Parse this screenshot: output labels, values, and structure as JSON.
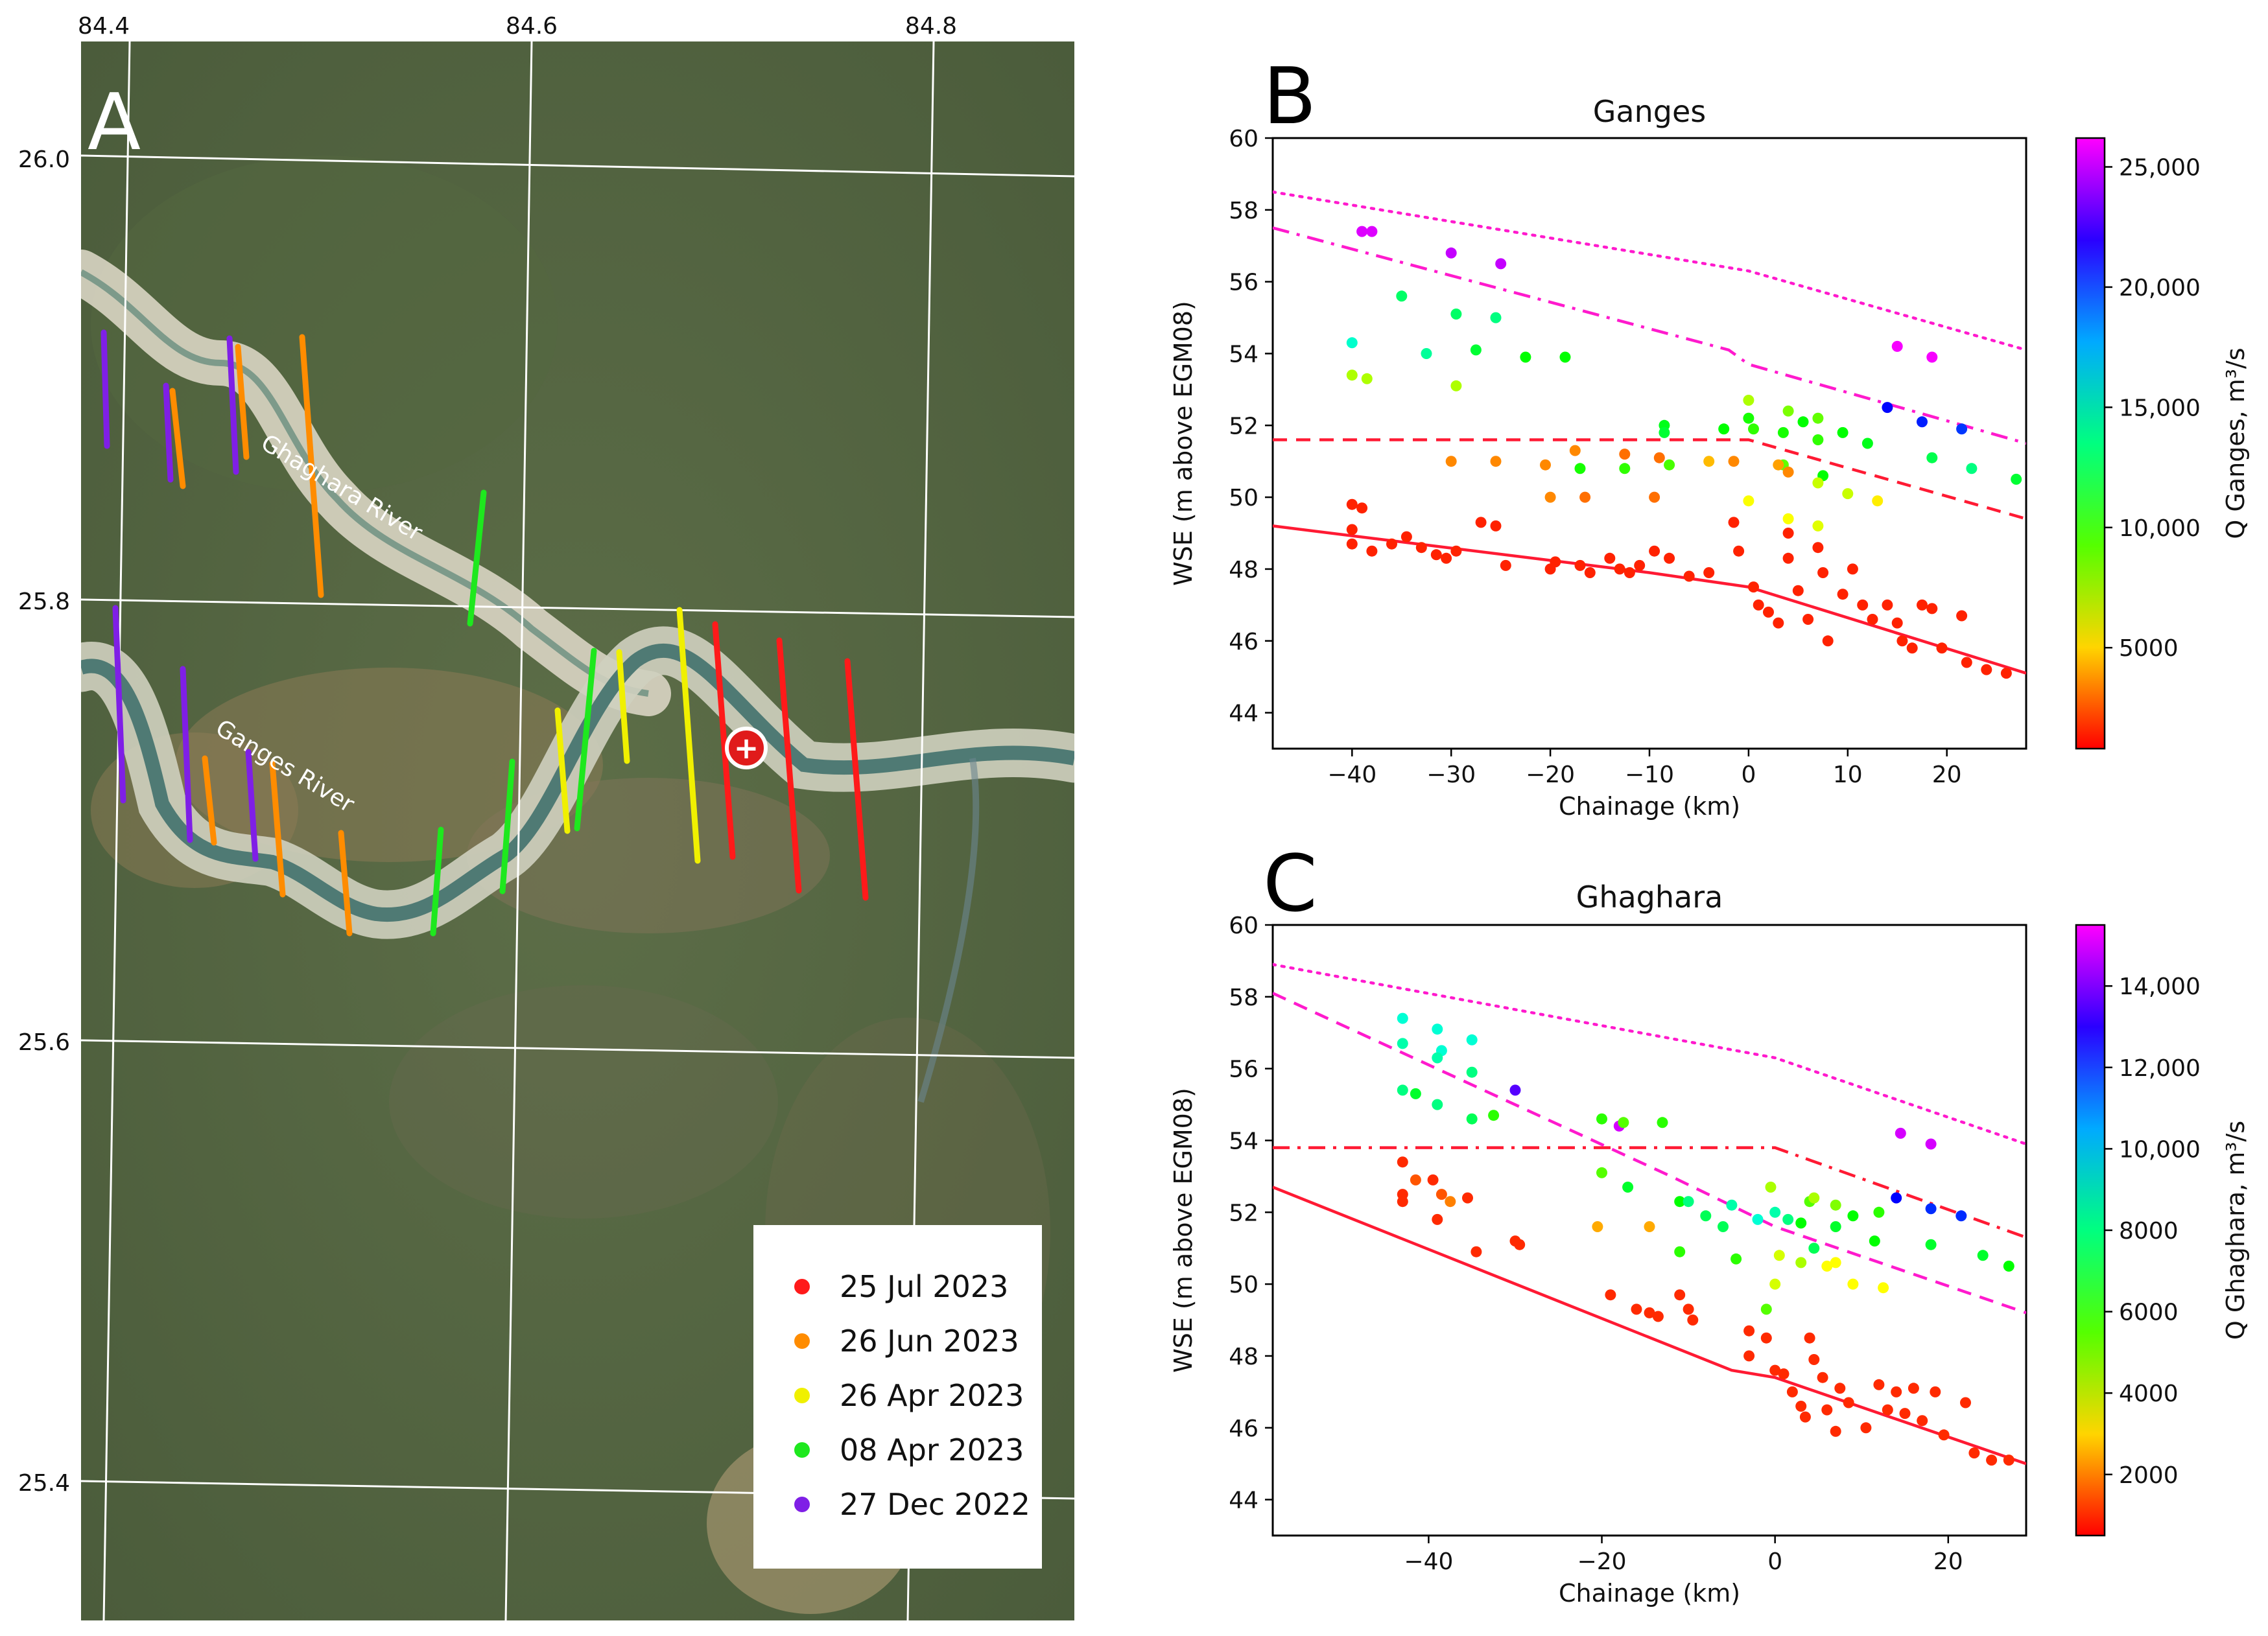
{
  "map": {
    "panel_label": "A",
    "lon_ticks": [
      "84.4",
      "84.6",
      "84.8"
    ],
    "lat_ticks": [
      "26.0",
      "25.8",
      "25.6",
      "25.4"
    ],
    "rivers": [
      "Ghaghara River",
      "Ganges River"
    ],
    "gauge_marker": "+",
    "legend": [
      {
        "label": "25 Jul 2023",
        "color": "#ff1a1a"
      },
      {
        "label": "26 Jun 2023",
        "color": "#ff8c00"
      },
      {
        "label": "26 Apr 2023",
        "color": "#f0f000"
      },
      {
        "label": "08 Apr 2023",
        "color": "#1ee81e"
      },
      {
        "label": "27 Dec 2022",
        "color": "#7f1fe6"
      }
    ]
  },
  "chart_data": [
    {
      "panel_label": "B",
      "type": "scatter",
      "title": "Ganges",
      "xlabel": "Chainage (km)",
      "ylabel": "WSE (m above EGM08)",
      "xlim": [
        -48,
        28
      ],
      "ylim": [
        43,
        60
      ],
      "xticks": [
        -40,
        -30,
        -20,
        -10,
        0,
        10,
        20
      ],
      "yticks": [
        44,
        46,
        48,
        50,
        52,
        54,
        56,
        58,
        60
      ],
      "colorbar": {
        "label": "Q Ganges, m³/s",
        "range": [
          800,
          26200
        ],
        "ticks": [
          5000,
          10000,
          15000,
          20000,
          25000
        ],
        "tick_labels": [
          "5000",
          "10,000",
          "15,000",
          "20,000",
          "25,000"
        ]
      },
      "lines": [
        {
          "style": "solid",
          "color": "#ff1a33",
          "x": [
            -48,
            -10,
            0,
            28
          ],
          "y": [
            49.2,
            47.9,
            47.5,
            45.1
          ]
        },
        {
          "style": "dashed",
          "color": "#ff1a33",
          "x": [
            -48,
            0,
            28
          ],
          "y": [
            51.6,
            51.6,
            49.4
          ]
        },
        {
          "style": "dashdot",
          "color": "#ff1acd",
          "x": [
            -48,
            -2,
            0,
            28
          ],
          "y": [
            57.5,
            54.1,
            53.7,
            51.5
          ]
        },
        {
          "style": "dotted",
          "color": "#ff1acd",
          "x": [
            -48,
            0,
            28
          ],
          "y": [
            58.5,
            56.3,
            54.1
          ]
        }
      ],
      "points": [
        [
          -39,
          57.4,
          25500
        ],
        [
          -38,
          57.4,
          25500
        ],
        [
          -30,
          56.8,
          25000
        ],
        [
          -25,
          56.5,
          25000
        ],
        [
          15,
          54.2,
          26000
        ],
        [
          18.5,
          53.9,
          26000
        ],
        [
          14,
          52.5,
          21000
        ],
        [
          17.5,
          52.1,
          20500
        ],
        [
          21.5,
          51.9,
          20000
        ],
        [
          -40,
          54.3,
          15000
        ],
        [
          -35,
          55.6,
          13000
        ],
        [
          -32.5,
          54.0,
          14000
        ],
        [
          -29.5,
          55.1,
          13000
        ],
        [
          -27.5,
          54.1,
          12000
        ],
        [
          -25.5,
          55.0,
          13500
        ],
        [
          -22.5,
          53.9,
          11000
        ],
        [
          -18.5,
          53.9,
          11000
        ],
        [
          18.5,
          51.1,
          12500
        ],
        [
          22.5,
          50.8,
          13500
        ],
        [
          27,
          50.5,
          12000
        ],
        [
          -40,
          53.4,
          7500
        ],
        [
          -38.5,
          53.3,
          7500
        ],
        [
          -29.5,
          53.1,
          7500
        ],
        [
          -8.5,
          52.0,
          11500
        ],
        [
          -8.5,
          51.8,
          12000
        ],
        [
          -2.5,
          51.9,
          11000
        ],
        [
          0,
          52.2,
          10500
        ],
        [
          0.5,
          51.9,
          10000
        ],
        [
          3.5,
          51.8,
          10500
        ],
        [
          5.5,
          52.1,
          11000
        ],
        [
          7,
          51.6,
          10000
        ],
        [
          9.5,
          51.8,
          11000
        ],
        [
          12,
          51.5,
          11500
        ],
        [
          4,
          52.4,
          8500
        ],
        [
          0,
          52.7,
          7500
        ],
        [
          7,
          52.2,
          9000
        ],
        [
          7.5,
          50.6,
          11000
        ],
        [
          3.5,
          50.9,
          9000
        ],
        [
          10,
          50.1,
          7000
        ],
        [
          13,
          49.9,
          5500
        ],
        [
          0,
          49.9,
          6000
        ],
        [
          4,
          49.4,
          6000
        ],
        [
          7,
          49.2,
          6500
        ],
        [
          7,
          50.4,
          7000
        ],
        [
          -30,
          51.0,
          3500
        ],
        [
          -25.5,
          51.0,
          3500
        ],
        [
          -20.5,
          50.9,
          3500
        ],
        [
          -20,
          50.0,
          3500
        ],
        [
          -17.5,
          51.3,
          3500
        ],
        [
          -16.5,
          50.0,
          3000
        ],
        [
          -12.5,
          51.2,
          3000
        ],
        [
          -9,
          51.1,
          3000
        ],
        [
          -9.5,
          50.0,
          3000
        ],
        [
          -17,
          50.8,
          10500
        ],
        [
          -12.5,
          50.8,
          10000
        ],
        [
          -8,
          50.9,
          9500
        ],
        [
          -4,
          51.0,
          4500
        ],
        [
          -1.5,
          51.0,
          3500
        ],
        [
          3,
          50.9,
          4000
        ],
        [
          4,
          50.7,
          3500
        ],
        [
          -40,
          49.8,
          1500
        ],
        [
          -39,
          49.7,
          1500
        ],
        [
          -40,
          49.1,
          1500
        ],
        [
          -40,
          48.7,
          1500
        ],
        [
          -38,
          48.5,
          1500
        ],
        [
          -36,
          48.7,
          1500
        ],
        [
          -34.5,
          48.9,
          1500
        ],
        [
          -33,
          48.6,
          1500
        ],
        [
          -31.5,
          48.4,
          1500
        ],
        [
          -30.5,
          48.3,
          1500
        ],
        [
          -29.5,
          48.5,
          1500
        ],
        [
          -27,
          49.3,
          1500
        ],
        [
          -25.5,
          49.2,
          1500
        ],
        [
          -24.5,
          48.1,
          1500
        ],
        [
          -20,
          48.0,
          1500
        ],
        [
          -19.5,
          48.2,
          1500
        ],
        [
          -17,
          48.1,
          1500
        ],
        [
          -16,
          47.9,
          1500
        ],
        [
          -14,
          48.3,
          1500
        ],
        [
          -13,
          48.0,
          1500
        ],
        [
          -12,
          47.9,
          1500
        ],
        [
          -11,
          48.1,
          1500
        ],
        [
          -9.5,
          48.5,
          1500
        ],
        [
          -8,
          48.3,
          1500
        ],
        [
          -6,
          47.8,
          1500
        ],
        [
          -4,
          47.9,
          1500
        ],
        [
          -1.5,
          49.3,
          1500
        ],
        [
          -1,
          48.5,
          1500
        ],
        [
          0.5,
          47.5,
          1500
        ],
        [
          1,
          47.0,
          1500
        ],
        [
          2,
          46.8,
          1500
        ],
        [
          3,
          46.5,
          1500
        ],
        [
          4,
          49.0,
          1500
        ],
        [
          4,
          48.3,
          1500
        ],
        [
          5,
          47.4,
          1500
        ],
        [
          6,
          46.6,
          1500
        ],
        [
          7,
          48.6,
          1500
        ],
        [
          7.5,
          47.9,
          1500
        ],
        [
          8,
          46.0,
          1500
        ],
        [
          9.5,
          47.3,
          1500
        ],
        [
          10.5,
          48.0,
          1500
        ],
        [
          11.5,
          47.0,
          1500
        ],
        [
          12.5,
          46.6,
          1500
        ],
        [
          14,
          47.0,
          1500
        ],
        [
          15,
          46.5,
          1500
        ],
        [
          15.5,
          46.0,
          1500
        ],
        [
          16.5,
          45.8,
          1500
        ],
        [
          17.5,
          47.0,
          1500
        ],
        [
          18.5,
          46.9,
          1500
        ],
        [
          19.5,
          45.8,
          1500
        ],
        [
          21.5,
          46.7,
          1500
        ],
        [
          22,
          45.4,
          1500
        ],
        [
          24,
          45.2,
          1500
        ],
        [
          26,
          45.1,
          1500
        ]
      ]
    },
    {
      "panel_label": "C",
      "type": "scatter",
      "title": "Ghaghara",
      "xlabel": "Chainage (km)",
      "ylabel": "WSE (m above EGM08)",
      "xlim": [
        -58,
        29
      ],
      "ylim": [
        43,
        60
      ],
      "xticks": [
        -40,
        -20,
        0,
        20
      ],
      "yticks": [
        44,
        46,
        48,
        50,
        52,
        54,
        56,
        58,
        60
      ],
      "colorbar": {
        "label": "Q Ghaghara, m³/s",
        "range": [
          500,
          15500
        ],
        "ticks": [
          2000,
          4000,
          6000,
          8000,
          10000,
          12000,
          14000
        ],
        "tick_labels": [
          "2000",
          "4000",
          "6000",
          "8000",
          "10,000",
          "12,000",
          "14,000"
        ]
      },
      "lines": [
        {
          "style": "solid",
          "color": "#ff1a33",
          "x": [
            -58,
            -5,
            0,
            29
          ],
          "y": [
            52.7,
            47.6,
            47.4,
            45.0
          ]
        },
        {
          "style": "dashdot",
          "color": "#ff1a33",
          "x": [
            -58,
            0,
            29
          ],
          "y": [
            53.8,
            53.8,
            51.3
          ]
        },
        {
          "style": "dashed",
          "color": "#ff1acd",
          "x": [
            -58,
            -12,
            0,
            29
          ],
          "y": [
            58.1,
            53.0,
            51.6,
            49.2
          ]
        },
        {
          "style": "dotted",
          "color": "#ff1acd",
          "x": [
            -58,
            0,
            29
          ],
          "y": [
            58.9,
            56.3,
            53.9
          ]
        }
      ],
      "points": [
        [
          -43,
          57.4,
          9000
        ],
        [
          -39,
          57.1,
          9000
        ],
        [
          -38.5,
          56.5,
          9000
        ],
        [
          -35,
          56.8,
          9000
        ],
        [
          -43,
          56.7,
          8500
        ],
        [
          -39,
          56.3,
          8500
        ],
        [
          -35,
          55.9,
          8000
        ],
        [
          -43,
          55.4,
          8000
        ],
        [
          -41.5,
          55.3,
          7000
        ],
        [
          -39,
          55.0,
          8000
        ],
        [
          -35,
          54.6,
          7500
        ],
        [
          -32.5,
          54.7,
          6000
        ],
        [
          -30,
          55.4,
          13500
        ],
        [
          -18,
          54.4,
          15000
        ],
        [
          14.5,
          54.2,
          15000
        ],
        [
          18,
          53.9,
          15000
        ],
        [
          14,
          52.4,
          12500
        ],
        [
          18,
          52.1,
          12000
        ],
        [
          21.5,
          51.9,
          12000
        ],
        [
          -20,
          54.6,
          6000
        ],
        [
          -17.5,
          54.5,
          5500
        ],
        [
          -13,
          54.5,
          6000
        ],
        [
          -17,
          52.7,
          7000
        ],
        [
          -11,
          52.3,
          6500
        ],
        [
          -10,
          52.3,
          8000
        ],
        [
          -8,
          51.9,
          7500
        ],
        [
          -6,
          51.6,
          7500
        ],
        [
          -5,
          52.2,
          8500
        ],
        [
          -2,
          51.8,
          9000
        ],
        [
          0,
          52.0,
          8500
        ],
        [
          1.5,
          51.8,
          8000
        ],
        [
          -20,
          53.1,
          5500
        ],
        [
          -11,
          50.9,
          6000
        ],
        [
          -4.5,
          50.7,
          6000
        ],
        [
          -1,
          49.3,
          5500
        ],
        [
          3,
          51.7,
          6500
        ],
        [
          4,
          52.3,
          5500
        ],
        [
          4.5,
          51.0,
          7500
        ],
        [
          7,
          51.6,
          7000
        ],
        [
          9,
          51.9,
          6500
        ],
        [
          12,
          52.0,
          6000
        ],
        [
          11.5,
          51.2,
          6500
        ],
        [
          18,
          51.1,
          7000
        ],
        [
          24,
          50.8,
          7000
        ],
        [
          27,
          50.5,
          6500
        ],
        [
          7,
          52.2,
          5000
        ],
        [
          -0.5,
          52.7,
          4500
        ],
        [
          4.5,
          52.4,
          4500
        ],
        [
          0.5,
          50.8,
          4000
        ],
        [
          3,
          50.6,
          4500
        ],
        [
          6,
          50.5,
          3500
        ],
        [
          7,
          50.6,
          3500
        ],
        [
          9,
          50.0,
          3500
        ],
        [
          12.5,
          49.9,
          3500
        ],
        [
          0,
          50.0,
          4000
        ],
        [
          -43,
          53.4,
          1000
        ],
        [
          -41.5,
          52.9,
          1500
        ],
        [
          -39.5,
          52.9,
          1000
        ],
        [
          -43,
          52.5,
          1000
        ],
        [
          -43,
          52.3,
          1000
        ],
        [
          -38.5,
          52.5,
          1500
        ],
        [
          -37.5,
          52.3,
          2000
        ],
        [
          -39,
          51.8,
          1000
        ],
        [
          -35.5,
          52.4,
          1000
        ],
        [
          -34.5,
          50.9,
          1000
        ],
        [
          -30,
          51.2,
          1000
        ],
        [
          -29.5,
          51.1,
          1000
        ],
        [
          -20.5,
          51.6,
          2500
        ],
        [
          -14.5,
          51.6,
          2500
        ],
        [
          -19,
          49.7,
          1000
        ],
        [
          -16,
          49.3,
          1000
        ],
        [
          -14.5,
          49.2,
          1000
        ],
        [
          -13.5,
          49.1,
          1000
        ],
        [
          -11,
          49.7,
          1000
        ],
        [
          -10,
          49.3,
          1000
        ],
        [
          -9.5,
          49.0,
          1000
        ],
        [
          -3,
          48.7,
          1000
        ],
        [
          -3,
          48.0,
          1000
        ],
        [
          -1,
          48.5,
          1000
        ],
        [
          0,
          47.6,
          1000
        ],
        [
          1,
          47.5,
          1000
        ],
        [
          2,
          47.0,
          1000
        ],
        [
          3,
          46.6,
          1000
        ],
        [
          3.5,
          46.3,
          1000
        ],
        [
          4,
          48.5,
          1000
        ],
        [
          4.5,
          47.9,
          1000
        ],
        [
          5.5,
          47.4,
          1000
        ],
        [
          6,
          46.5,
          1000
        ],
        [
          7,
          45.9,
          1000
        ],
        [
          7.5,
          47.1,
          1000
        ],
        [
          8.5,
          46.7,
          1000
        ],
        [
          10.5,
          46.0,
          1000
        ],
        [
          12,
          47.2,
          1000
        ],
        [
          13,
          46.5,
          1000
        ],
        [
          14,
          47.0,
          1000
        ],
        [
          15,
          46.4,
          1000
        ],
        [
          16,
          47.1,
          1000
        ],
        [
          17,
          46.2,
          1000
        ],
        [
          18.5,
          47.0,
          1000
        ],
        [
          19.5,
          45.8,
          1000
        ],
        [
          22,
          46.7,
          1000
        ],
        [
          23,
          45.3,
          1000
        ],
        [
          25,
          45.1,
          1000
        ],
        [
          27,
          45.1,
          1000
        ]
      ]
    }
  ]
}
